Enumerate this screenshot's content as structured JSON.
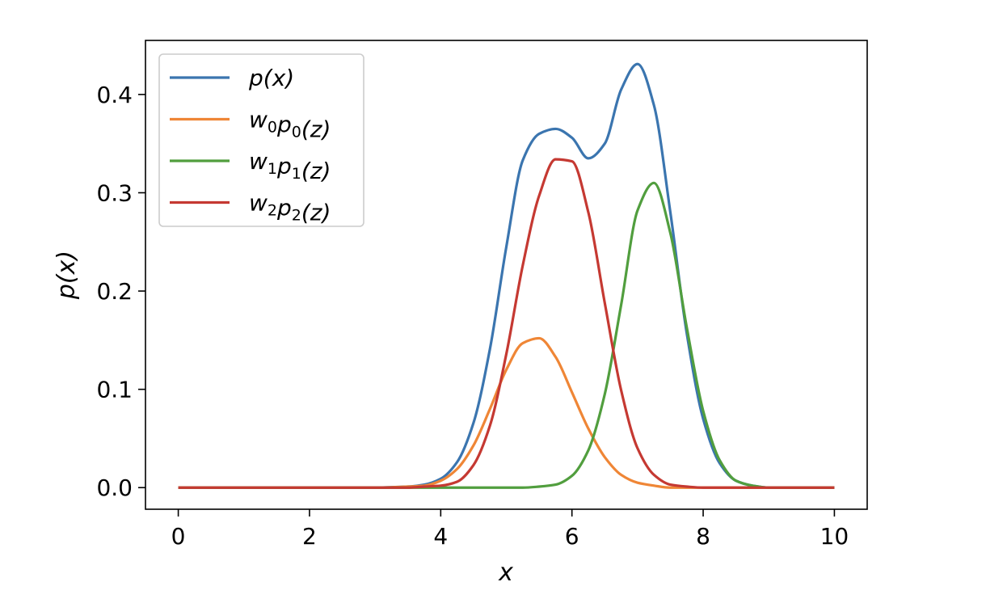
{
  "chart_data": {
    "type": "line",
    "title": "",
    "xlabel": "x",
    "ylabel": "p(x)",
    "xlim": [
      -0.5,
      10.5
    ],
    "ylim": [
      -0.022,
      0.455
    ],
    "xticks": [
      0,
      2,
      4,
      6,
      8,
      10
    ],
    "xtick_labels": [
      "0",
      "2",
      "4",
      "6",
      "8",
      "10"
    ],
    "yticks": [
      0.0,
      0.1,
      0.2,
      0.3,
      0.4
    ],
    "ytick_labels": [
      "0.0",
      "0.1",
      "0.2",
      "0.3",
      "0.4"
    ],
    "grid": false,
    "legend_position": "upper-left",
    "x": [
      0,
      0.5,
      1,
      1.5,
      2,
      2.5,
      3,
      3.5,
      3.75,
      4,
      4.25,
      4.5,
      4.75,
      5,
      5.25,
      5.5,
      5.75,
      6,
      6.25,
      6.5,
      6.75,
      7,
      7.25,
      7.5,
      7.75,
      8,
      8.25,
      8.5,
      8.75,
      9,
      9.5,
      10
    ],
    "series": [
      {
        "name": "p(x)",
        "color": "#3b75af",
        "values": [
          0,
          0,
          0,
          0,
          0,
          0,
          0,
          0.001,
          0.003,
          0.009,
          0.026,
          0.066,
          0.141,
          0.245,
          0.333,
          0.36,
          0.365,
          0.356,
          0.335,
          0.35,
          0.405,
          0.431,
          0.389,
          0.28,
          0.157,
          0.07,
          0.025,
          0.007,
          0.002,
          0,
          0,
          0
        ]
      },
      {
        "name": "w0p0(z)",
        "color": "#ef8636",
        "values": [
          0,
          0,
          0,
          0,
          0,
          0,
          0,
          0.001,
          0.002,
          0.007,
          0.019,
          0.043,
          0.08,
          0.12,
          0.147,
          0.152,
          0.133,
          0.097,
          0.06,
          0.031,
          0.013,
          0.005,
          0.002,
          0,
          0,
          0,
          0,
          0,
          0,
          0,
          0,
          0
        ]
      },
      {
        "name": "w1p1(z)",
        "color": "#519e3e",
        "values": [
          0,
          0,
          0,
          0,
          0,
          0,
          0,
          0,
          0,
          0,
          0,
          0,
          0,
          0,
          0,
          0.001,
          0.003,
          0.012,
          0.038,
          0.095,
          0.186,
          0.282,
          0.31,
          0.259,
          0.163,
          0.078,
          0.028,
          0.007,
          0.002,
          0,
          0,
          0
        ]
      },
      {
        "name": "w2p2(z)",
        "color": "#c53932",
        "values": [
          0,
          0,
          0,
          0,
          0,
          0,
          0,
          0,
          0.001,
          0.002,
          0.006,
          0.023,
          0.063,
          0.136,
          0.226,
          0.297,
          0.334,
          0.332,
          0.28,
          0.188,
          0.099,
          0.04,
          0.013,
          0.003,
          0.001,
          0,
          0,
          0,
          0,
          0,
          0,
          0
        ]
      }
    ]
  },
  "legend": {
    "entries": [
      {
        "base": "p",
        "sub": "",
        "base2": "",
        "sub2": "",
        "tail": "(x)"
      },
      {
        "base": "w",
        "sub": "0",
        "base2": "p",
        "sub2": "0",
        "tail": "(z)"
      },
      {
        "base": "w",
        "sub": "1",
        "base2": "p",
        "sub2": "1",
        "tail": "(z)"
      },
      {
        "base": "w",
        "sub": "2",
        "base2": "p",
        "sub2": "2",
        "tail": "(z)"
      }
    ]
  }
}
